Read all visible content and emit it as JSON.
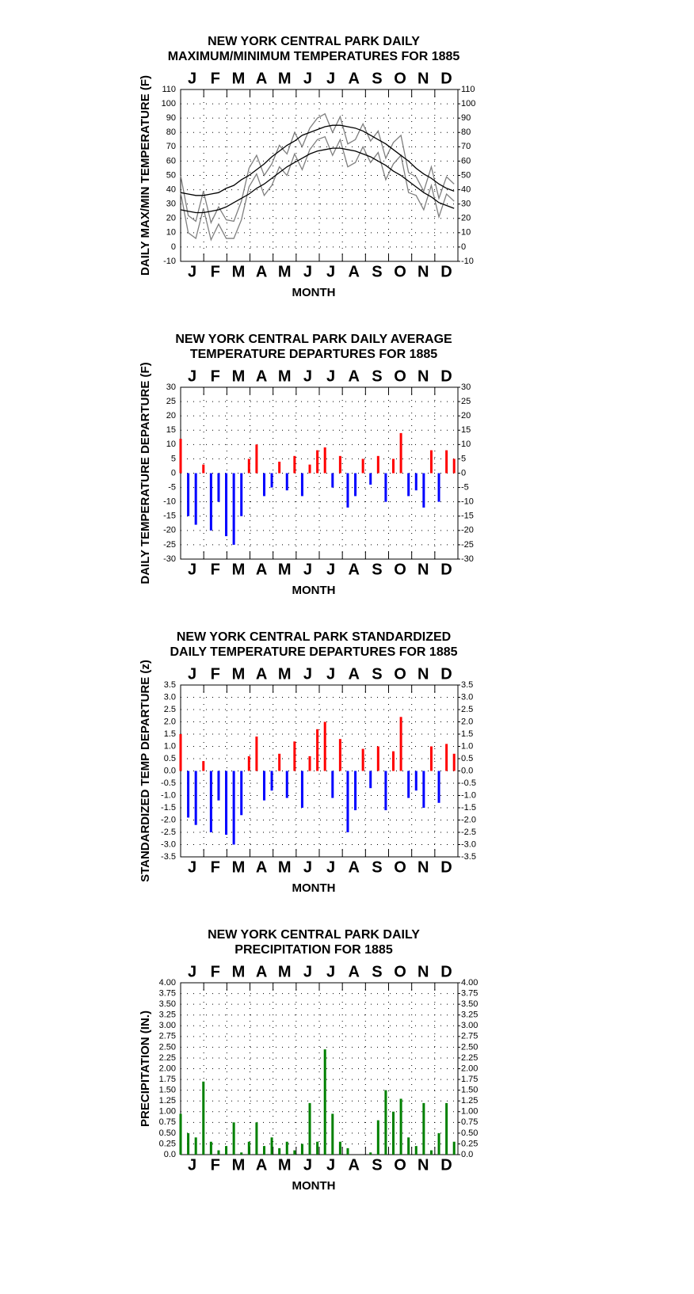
{
  "chart_data": [
    {
      "type": "line",
      "title": [
        "NEW YORK CENTRAL PARK DAILY",
        "MAXIMUM/MINIMUM TEMPERATURES FOR 1885"
      ],
      "ylabel": "DAILY MAX/MIN TEMPERATURE (F)",
      "xlabel": "MONTH",
      "months": [
        "J",
        "F",
        "M",
        "A",
        "M",
        "J",
        "J",
        "A",
        "S",
        "O",
        "N",
        "D"
      ],
      "xlim": [
        1,
        366
      ],
      "ylim": [
        -10,
        110
      ],
      "yticks": [
        -10,
        0,
        10,
        20,
        30,
        40,
        50,
        60,
        70,
        80,
        90,
        100,
        110
      ],
      "grid": true,
      "x": [
        1,
        11,
        21,
        31,
        41,
        51,
        61,
        71,
        81,
        91,
        101,
        111,
        121,
        131,
        141,
        151,
        161,
        171,
        181,
        191,
        201,
        211,
        221,
        231,
        241,
        251,
        261,
        271,
        281,
        291,
        301,
        311,
        321,
        331,
        341,
        351,
        361
      ],
      "series": [
        {
          "color": "#7f7f7f",
          "values": [
            50,
            22,
            18,
            39,
            17,
            28,
            19,
            18,
            32,
            55,
            64,
            50,
            58,
            71,
            65,
            80,
            70,
            83,
            90,
            93,
            80,
            91,
            72,
            75,
            86,
            74,
            81,
            62,
            73,
            78,
            52,
            49,
            39,
            56,
            34,
            49,
            44
          ]
        },
        {
          "color": "#7f7f7f",
          "values": [
            38,
            10,
            6,
            27,
            5,
            16,
            6,
            6,
            19,
            42,
            51,
            36,
            43,
            56,
            50,
            65,
            54,
            68,
            75,
            77,
            64,
            75,
            56,
            59,
            70,
            59,
            66,
            47,
            58,
            64,
            38,
            36,
            26,
            43,
            21,
            37,
            32
          ]
        },
        {
          "color": "#000000",
          "values": [
            38,
            37,
            36,
            36,
            37,
            38,
            41,
            43,
            47,
            50,
            54,
            58,
            63,
            67,
            71,
            74,
            78,
            80,
            82,
            84,
            85,
            85,
            84,
            83,
            81,
            78,
            75,
            72,
            68,
            64,
            60,
            55,
            51,
            48,
            44,
            41,
            39
          ]
        },
        {
          "color": "#000000",
          "values": [
            26,
            25,
            24,
            24,
            25,
            26,
            28,
            31,
            34,
            37,
            41,
            44,
            48,
            52,
            56,
            59,
            62,
            65,
            67,
            68,
            69,
            69,
            68,
            67,
            65,
            63,
            60,
            57,
            53,
            50,
            46,
            42,
            38,
            35,
            31,
            29,
            27
          ]
        }
      ]
    },
    {
      "type": "bar",
      "title": [
        "NEW YORK CENTRAL PARK DAILY AVERAGE",
        "TEMPERATURE DEPARTURES FOR 1885"
      ],
      "ylabel": "DAILY TEMPERATURE DEPARTURE (F)",
      "xlabel": "MONTH",
      "months": [
        "J",
        "F",
        "M",
        "A",
        "M",
        "J",
        "J",
        "A",
        "S",
        "O",
        "N",
        "D"
      ],
      "xlim": [
        1,
        366
      ],
      "ylim": [
        -30,
        30
      ],
      "yticks": [
        -30,
        -25,
        -20,
        -15,
        -10,
        -5,
        0,
        5,
        10,
        15,
        20,
        25,
        30
      ],
      "grid": true,
      "pos_color": "#ff0000",
      "neg_color": "#0000ff",
      "x": [
        1,
        11,
        21,
        31,
        41,
        51,
        61,
        71,
        81,
        91,
        101,
        111,
        121,
        131,
        141,
        151,
        161,
        171,
        181,
        191,
        201,
        211,
        221,
        231,
        241,
        251,
        261,
        271,
        281,
        291,
        301,
        311,
        321,
        331,
        341,
        351,
        361
      ],
      "values": [
        12,
        -15,
        -18,
        3,
        -20,
        -10,
        -22,
        -25,
        -15,
        5,
        10,
        -8,
        -5,
        4,
        -6,
        6,
        -8,
        3,
        8,
        9,
        -5,
        6,
        -12,
        -8,
        5,
        -4,
        6,
        -10,
        5,
        14,
        -8,
        -6,
        -12,
        8,
        -10,
        8,
        5
      ]
    },
    {
      "type": "bar",
      "title": [
        "NEW YORK CENTRAL PARK STANDARDIZED",
        "DAILY TEMPERATURE DEPARTURES FOR 1885"
      ],
      "ylabel": "STANDARDIZED TEMP DEPARTURE (z)",
      "xlabel": "MONTH",
      "months": [
        "J",
        "F",
        "M",
        "A",
        "M",
        "J",
        "J",
        "A",
        "S",
        "O",
        "N",
        "D"
      ],
      "xlim": [
        1,
        366
      ],
      "ylim": [
        -3.5,
        3.5
      ],
      "yticks": [
        -3.5,
        {
          "value": -3,
          "label": "-3.0"
        },
        -2.5,
        {
          "value": -2,
          "label": "-2.0"
        },
        -1.5,
        {
          "value": -1,
          "label": "-1.0"
        },
        -0.5,
        {
          "value": 0,
          "label": "0.0"
        },
        0.5,
        {
          "value": 1,
          "label": "1.0"
        },
        1.5,
        {
          "value": 2,
          "label": "2.0"
        },
        2.5,
        {
          "value": 3,
          "label": "3.0"
        },
        3.5
      ],
      "grid": true,
      "pos_color": "#ff0000",
      "neg_color": "#0000ff",
      "x": [
        1,
        11,
        21,
        31,
        41,
        51,
        61,
        71,
        81,
        91,
        101,
        111,
        121,
        131,
        141,
        151,
        161,
        171,
        181,
        191,
        201,
        211,
        221,
        231,
        241,
        251,
        261,
        271,
        281,
        291,
        301,
        311,
        321,
        331,
        341,
        351,
        361
      ],
      "values": [
        1.5,
        -1.9,
        -2.2,
        0.4,
        -2.5,
        -1.2,
        -2.6,
        -3.0,
        -1.8,
        0.6,
        1.4,
        -1.2,
        -0.8,
        0.7,
        -1.1,
        1.2,
        -1.5,
        0.6,
        1.7,
        2.0,
        -1.1,
        1.3,
        -2.5,
        -1.6,
        0.9,
        -0.7,
        1.0,
        -1.6,
        0.8,
        2.2,
        -1.1,
        -0.8,
        -1.5,
        1.0,
        -1.3,
        1.1,
        0.7
      ]
    },
    {
      "type": "bar",
      "title": [
        "NEW YORK CENTRAL PARK DAILY",
        "PRECIPITATION FOR 1885"
      ],
      "ylabel": "PRECIPITATION (IN.)",
      "xlabel": "MONTH",
      "months": [
        "J",
        "F",
        "M",
        "A",
        "M",
        "J",
        "J",
        "A",
        "S",
        "O",
        "N",
        "D"
      ],
      "xlim": [
        1,
        366
      ],
      "ylim": [
        0,
        4
      ],
      "yticks": [
        {
          "value": 0,
          "label": "0.0"
        },
        {
          "value": 0.25,
          "label": "0.25"
        },
        {
          "value": 0.5,
          "label": "0.50"
        },
        {
          "value": 0.75,
          "label": "0.75"
        },
        {
          "value": 1,
          "label": "1.00"
        },
        {
          "value": 1.25,
          "label": "1.25"
        },
        {
          "value": 1.5,
          "label": "1.50"
        },
        {
          "value": 1.75,
          "label": "1.75"
        },
        {
          "value": 2,
          "label": "2.00"
        },
        {
          "value": 2.25,
          "label": "2.25"
        },
        {
          "value": 2.5,
          "label": "2.50"
        },
        {
          "value": 2.75,
          "label": "2.75"
        },
        {
          "value": 3,
          "label": "3.00"
        },
        {
          "value": 3.25,
          "label": "3.25"
        },
        {
          "value": 3.5,
          "label": "3.50"
        },
        {
          "value": 3.75,
          "label": "3.75"
        },
        {
          "value": 4,
          "label": "4.00"
        }
      ],
      "grid": true,
      "pos_color": "#008000",
      "neg_color": "#008000",
      "x": [
        1,
        11,
        21,
        31,
        41,
        51,
        61,
        71,
        81,
        91,
        101,
        111,
        121,
        131,
        141,
        151,
        161,
        171,
        181,
        191,
        201,
        211,
        221,
        231,
        241,
        251,
        261,
        271,
        281,
        291,
        301,
        311,
        321,
        331,
        341,
        351,
        361
      ],
      "values": [
        0.95,
        0.5,
        0.4,
        1.7,
        0.3,
        0.1,
        0.2,
        0.75,
        0.05,
        0.3,
        0.75,
        0.2,
        0.4,
        0.15,
        0.3,
        0.1,
        0.25,
        1.2,
        0.3,
        2.45,
        0.95,
        0.3,
        0.15,
        0,
        0,
        0.05,
        0.8,
        1.5,
        1.0,
        1.3,
        0.4,
        0.2,
        1.2,
        0.1,
        0.5,
        1.2,
        0.3
      ]
    }
  ]
}
